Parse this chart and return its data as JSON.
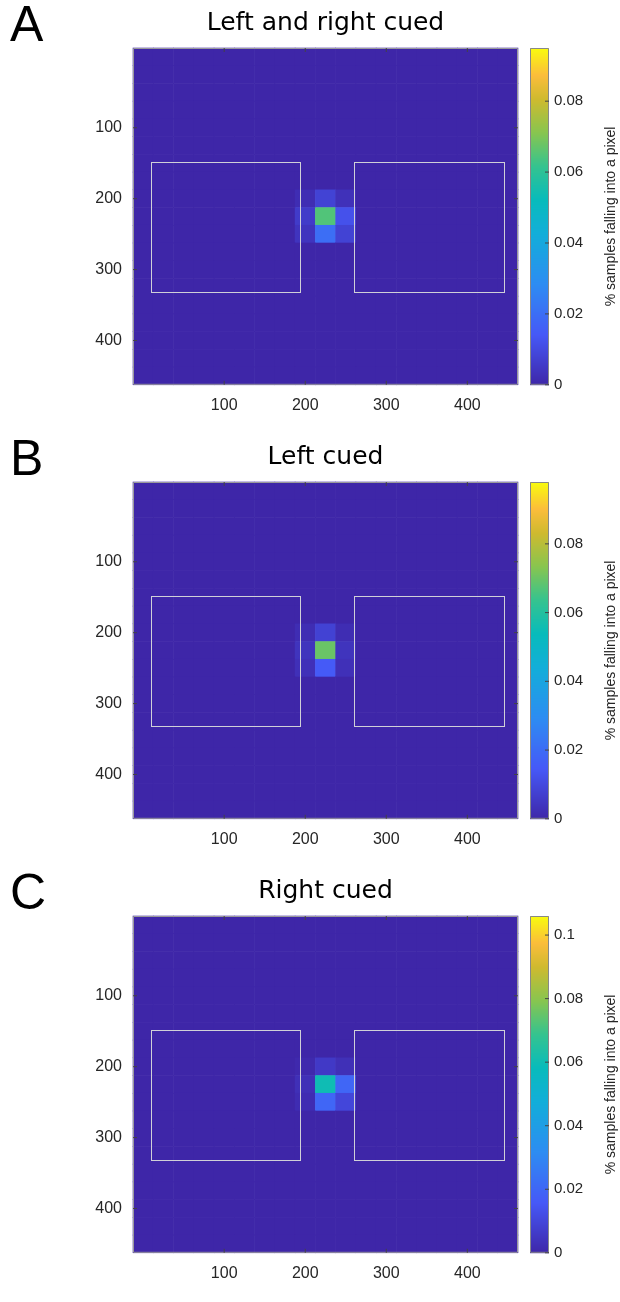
{
  "chart_data": [
    {
      "type": "heatmap",
      "title": "Left and right cued",
      "annotations": [
        "A"
      ],
      "clabel": "% samples falling into a pixel",
      "clim": [
        0,
        0.095
      ],
      "cticks": [
        0,
        0.02,
        0.04,
        0.06,
        0.08
      ],
      "categories": [
        null,
        null,
        null,
        null,
        "100",
        null,
        null,
        null,
        "200",
        null,
        null,
        null,
        "300",
        null,
        null,
        null,
        "400",
        null,
        null
      ],
      "y_categories": [
        null,
        null,
        null,
        null,
        "100",
        null,
        null,
        null,
        "200",
        null,
        null,
        null,
        "300",
        null,
        null,
        null,
        "400",
        null,
        null
      ],
      "cells": [
        [
          0,
          0,
          0,
          0,
          0,
          0,
          0,
          0,
          0,
          0,
          0,
          0,
          0,
          0,
          0,
          0,
          0,
          0,
          0
        ],
        [
          0,
          0,
          0,
          0,
          0,
          0,
          0,
          0,
          0,
          0,
          0,
          0,
          0,
          0,
          0,
          0,
          0,
          0,
          0
        ],
        [
          0,
          0,
          0,
          0,
          0,
          0,
          0,
          0,
          0,
          0,
          0,
          0,
          0,
          0,
          0,
          0,
          0,
          0,
          0
        ],
        [
          0,
          0,
          0,
          0,
          0,
          0,
          0,
          0,
          0,
          0,
          0,
          0,
          0,
          0,
          0,
          0,
          0,
          0,
          0
        ],
        [
          0,
          0,
          0,
          0,
          0,
          0,
          0,
          0,
          0,
          0,
          0,
          0,
          0,
          0,
          0,
          0,
          0,
          0,
          0
        ],
        [
          0,
          0,
          0,
          0,
          0,
          0,
          0,
          0,
          0,
          0,
          0,
          0,
          0,
          0,
          0,
          0,
          0,
          0,
          0
        ],
        [
          0,
          0,
          0,
          0,
          0,
          0,
          0,
          0,
          0,
          0,
          0,
          0,
          0,
          0,
          0,
          0,
          0,
          0,
          0
        ],
        [
          0,
          0,
          0,
          0,
          0,
          0,
          0,
          0,
          0,
          0,
          0,
          0,
          0,
          0,
          0,
          0,
          0,
          0,
          0
        ],
        [
          0,
          0,
          0,
          0,
          0,
          0,
          0,
          0,
          0.002,
          0.008,
          0.003,
          0,
          0,
          0,
          0,
          0,
          0,
          0,
          0
        ],
        [
          0,
          0,
          0,
          0,
          0,
          0,
          0,
          0,
          0.006,
          0.065,
          0.012,
          0,
          0,
          0,
          0,
          0,
          0,
          0,
          0
        ],
        [
          0,
          0,
          0,
          0,
          0,
          0,
          0,
          0,
          0.004,
          0.02,
          0.008,
          0,
          0,
          0,
          0,
          0,
          0,
          0,
          0
        ],
        [
          0,
          0,
          0,
          0,
          0,
          0,
          0,
          0,
          0,
          0,
          0,
          0,
          0,
          0,
          0,
          0,
          0,
          0,
          0
        ],
        [
          0,
          0,
          0,
          0,
          0,
          0,
          0,
          0,
          0,
          0,
          0,
          0,
          0,
          0,
          0,
          0,
          0,
          0,
          0
        ],
        [
          0,
          0,
          0,
          0,
          0,
          0,
          0,
          0,
          0,
          0,
          0,
          0,
          0,
          0,
          0,
          0,
          0,
          0,
          0
        ],
        [
          0,
          0,
          0,
          0,
          0,
          0,
          0,
          0,
          0,
          0,
          0,
          0,
          0,
          0,
          0,
          0,
          0,
          0,
          0
        ],
        [
          0,
          0,
          0,
          0,
          0,
          0,
          0,
          0,
          0,
          0,
          0,
          0,
          0,
          0,
          0,
          0,
          0,
          0,
          0
        ],
        [
          0,
          0,
          0,
          0,
          0,
          0,
          0,
          0,
          0,
          0,
          0,
          0,
          0,
          0,
          0,
          0,
          0,
          0,
          0
        ],
        [
          0,
          0,
          0,
          0,
          0,
          0,
          0,
          0,
          0,
          0,
          0,
          0,
          0,
          0,
          0,
          0,
          0,
          0,
          0
        ],
        [
          0,
          0,
          0,
          0,
          0,
          0,
          0,
          0,
          0,
          0,
          0,
          0,
          0,
          0,
          0,
          0,
          0,
          0,
          0
        ]
      ]
    },
    {
      "type": "heatmap",
      "title": "Left cued",
      "annotations": [
        "B"
      ],
      "clabel": "% samples falling into a pixel",
      "clim": [
        0,
        0.098
      ],
      "cticks": [
        0,
        0.02,
        0.04,
        0.06,
        0.08
      ],
      "categories": [
        null,
        null,
        null,
        null,
        "100",
        null,
        null,
        null,
        "200",
        null,
        null,
        null,
        "300",
        null,
        null,
        null,
        "400",
        null,
        null
      ],
      "y_categories": [
        null,
        null,
        null,
        null,
        "100",
        null,
        null,
        null,
        "200",
        null,
        null,
        null,
        "300",
        null,
        null,
        null,
        "400",
        null,
        null
      ],
      "cells": [
        [
          0,
          0,
          0,
          0,
          0,
          0,
          0,
          0,
          0,
          0,
          0,
          0,
          0,
          0,
          0,
          0,
          0,
          0,
          0
        ],
        [
          0,
          0,
          0,
          0,
          0,
          0,
          0,
          0,
          0,
          0,
          0,
          0,
          0,
          0,
          0,
          0,
          0,
          0,
          0
        ],
        [
          0,
          0,
          0,
          0,
          0,
          0,
          0,
          0,
          0,
          0,
          0,
          0,
          0,
          0,
          0,
          0,
          0,
          0,
          0
        ],
        [
          0,
          0,
          0,
          0,
          0,
          0,
          0,
          0,
          0,
          0,
          0,
          0,
          0,
          0,
          0,
          0,
          0,
          0,
          0
        ],
        [
          0,
          0,
          0,
          0,
          0,
          0,
          0,
          0,
          0,
          0,
          0,
          0,
          0,
          0,
          0,
          0,
          0,
          0,
          0
        ],
        [
          0,
          0,
          0,
          0,
          0,
          0,
          0,
          0,
          0,
          0,
          0,
          0,
          0,
          0,
          0,
          0,
          0,
          0,
          0
        ],
        [
          0,
          0,
          0,
          0,
          0,
          0,
          0,
          0,
          0,
          0,
          0,
          0,
          0,
          0,
          0,
          0,
          0,
          0,
          0
        ],
        [
          0,
          0,
          0,
          0,
          0,
          0,
          0,
          0,
          0,
          0,
          0,
          0,
          0,
          0,
          0,
          0,
          0,
          0,
          0
        ],
        [
          0,
          0,
          0,
          0,
          0,
          0,
          0,
          0,
          0.002,
          0.008,
          0.002,
          0,
          0,
          0,
          0,
          0,
          0,
          0,
          0
        ],
        [
          0,
          0,
          0,
          0,
          0,
          0,
          0,
          0,
          0.004,
          0.07,
          0.004,
          0,
          0,
          0,
          0,
          0,
          0,
          0,
          0
        ],
        [
          0,
          0,
          0,
          0,
          0,
          0,
          0,
          0,
          0.003,
          0.015,
          0.003,
          0,
          0,
          0,
          0,
          0,
          0,
          0,
          0
        ],
        [
          0,
          0,
          0,
          0,
          0,
          0,
          0,
          0,
          0,
          0,
          0,
          0,
          0,
          0,
          0,
          0,
          0,
          0,
          0
        ],
        [
          0,
          0,
          0,
          0,
          0,
          0,
          0,
          0,
          0,
          0,
          0,
          0,
          0,
          0,
          0,
          0,
          0,
          0,
          0
        ],
        [
          0,
          0,
          0,
          0,
          0,
          0,
          0,
          0,
          0,
          0,
          0,
          0,
          0,
          0,
          0,
          0,
          0,
          0,
          0
        ],
        [
          0,
          0,
          0,
          0,
          0,
          0,
          0,
          0,
          0,
          0,
          0,
          0,
          0,
          0,
          0,
          0,
          0,
          0,
          0
        ],
        [
          0,
          0,
          0,
          0,
          0,
          0,
          0,
          0,
          0,
          0,
          0,
          0,
          0,
          0,
          0,
          0,
          0,
          0,
          0
        ],
        [
          0,
          0,
          0,
          0,
          0,
          0,
          0,
          0,
          0,
          0,
          0,
          0,
          0,
          0,
          0,
          0,
          0,
          0,
          0
        ],
        [
          0,
          0,
          0,
          0,
          0,
          0,
          0,
          0,
          0,
          0,
          0,
          0,
          0,
          0,
          0,
          0,
          0,
          0,
          0
        ],
        [
          0,
          0,
          0,
          0,
          0,
          0,
          0,
          0,
          0,
          0,
          0,
          0,
          0,
          0,
          0,
          0,
          0,
          0,
          0
        ]
      ]
    },
    {
      "type": "heatmap",
      "title": "Right cued",
      "annotations": [
        "C"
      ],
      "clabel": "% samples falling into a pixel",
      "clim": [
        0,
        0.106
      ],
      "cticks": [
        0,
        0.02,
        0.04,
        0.06,
        0.08,
        0.1
      ],
      "categories": [
        null,
        null,
        null,
        null,
        "100",
        null,
        null,
        null,
        "200",
        null,
        null,
        null,
        "300",
        null,
        null,
        null,
        "400",
        null,
        null
      ],
      "y_categories": [
        null,
        null,
        null,
        null,
        "100",
        null,
        null,
        null,
        "200",
        null,
        null,
        null,
        "300",
        null,
        null,
        null,
        "400",
        null,
        null
      ],
      "cells": [
        [
          0,
          0,
          0,
          0,
          0,
          0,
          0,
          0,
          0,
          0,
          0,
          0,
          0,
          0,
          0,
          0,
          0,
          0,
          0
        ],
        [
          0,
          0,
          0,
          0,
          0,
          0,
          0,
          0,
          0,
          0,
          0,
          0,
          0,
          0,
          0,
          0,
          0,
          0,
          0
        ],
        [
          0,
          0,
          0,
          0,
          0,
          0,
          0,
          0,
          0,
          0,
          0,
          0,
          0,
          0,
          0,
          0,
          0,
          0,
          0
        ],
        [
          0,
          0,
          0,
          0,
          0,
          0,
          0,
          0,
          0,
          0,
          0,
          0,
          0,
          0,
          0,
          0,
          0,
          0,
          0
        ],
        [
          0,
          0,
          0,
          0,
          0,
          0,
          0,
          0,
          0,
          0,
          0,
          0,
          0,
          0,
          0,
          0,
          0,
          0,
          0
        ],
        [
          0,
          0,
          0,
          0,
          0,
          0,
          0,
          0,
          0,
          0,
          0,
          0,
          0,
          0,
          0,
          0,
          0,
          0,
          0
        ],
        [
          0,
          0,
          0,
          0,
          0,
          0,
          0,
          0,
          0,
          0,
          0,
          0,
          0,
          0,
          0,
          0,
          0,
          0,
          0
        ],
        [
          0,
          0,
          0,
          0,
          0,
          0,
          0,
          0,
          0,
          0,
          0,
          0,
          0,
          0,
          0,
          0,
          0,
          0,
          0
        ],
        [
          0,
          0,
          0,
          0,
          0,
          0,
          0,
          0,
          0.001,
          0.006,
          0.003,
          0,
          0,
          0,
          0,
          0,
          0,
          0,
          0
        ],
        [
          0,
          0,
          0,
          0,
          0,
          0,
          0,
          0,
          0.003,
          0.06,
          0.02,
          0,
          0,
          0,
          0,
          0,
          0,
          0,
          0
        ],
        [
          0,
          0,
          0,
          0,
          0,
          0,
          0,
          0,
          0.002,
          0.02,
          0.01,
          0,
          0,
          0,
          0,
          0,
          0,
          0,
          0
        ],
        [
          0,
          0,
          0,
          0,
          0,
          0,
          0,
          0,
          0,
          0,
          0,
          0,
          0,
          0,
          0,
          0,
          0,
          0,
          0
        ],
        [
          0,
          0,
          0,
          0,
          0,
          0,
          0,
          0,
          0,
          0,
          0,
          0,
          0,
          0,
          0,
          0,
          0,
          0,
          0
        ],
        [
          0,
          0,
          0,
          0,
          0,
          0,
          0,
          0,
          0,
          0,
          0,
          0,
          0,
          0,
          0,
          0,
          0,
          0,
          0
        ],
        [
          0,
          0,
          0,
          0,
          0,
          0,
          0,
          0,
          0,
          0,
          0,
          0,
          0,
          0,
          0,
          0,
          0,
          0,
          0
        ],
        [
          0,
          0,
          0,
          0,
          0,
          0,
          0,
          0,
          0,
          0,
          0,
          0,
          0,
          0,
          0,
          0,
          0,
          0,
          0
        ],
        [
          0,
          0,
          0,
          0,
          0,
          0,
          0,
          0,
          0,
          0,
          0,
          0,
          0,
          0,
          0,
          0,
          0,
          0,
          0
        ],
        [
          0,
          0,
          0,
          0,
          0,
          0,
          0,
          0,
          0,
          0,
          0,
          0,
          0,
          0,
          0,
          0,
          0,
          0,
          0
        ],
        [
          0,
          0,
          0,
          0,
          0,
          0,
          0,
          0,
          0,
          0,
          0,
          0,
          0,
          0,
          0,
          0,
          0,
          0,
          0
        ]
      ]
    }
  ]
}
